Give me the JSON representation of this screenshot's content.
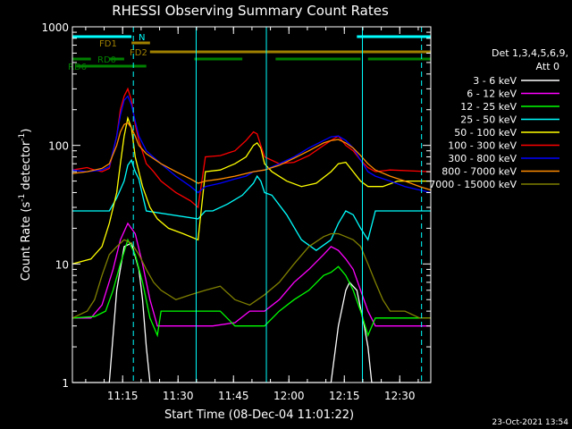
{
  "chart_data": {
    "type": "line",
    "title": "RHESSI Observing Summary Count Rates",
    "xlabel": "Start Time (08-Dec-04 11:01:22)",
    "ylabel_main": "Count Rate (s",
    "ylabel_exp1": "-1",
    "ylabel_mid": " detector",
    "ylabel_exp2": "-1",
    "ylabel_end": ")",
    "yscale": "log",
    "ylim": [
      1,
      1000
    ],
    "xlim_minutes": [
      0,
      97
    ],
    "x_ticks": [
      {
        "minute": 13.6,
        "label": "11:15"
      },
      {
        "minute": 28.6,
        "label": "11:30"
      },
      {
        "minute": 43.6,
        "label": "11:45"
      },
      {
        "minute": 58.6,
        "label": "12:00"
      },
      {
        "minute": 73.6,
        "label": "12:15"
      },
      {
        "minute": 88.6,
        "label": "12:30"
      }
    ],
    "y_ticks": [
      {
        "value": 1,
        "label": "1"
      },
      {
        "value": 10,
        "label": "10"
      },
      {
        "value": 100,
        "label": "100"
      },
      {
        "value": 1000,
        "label": "1000"
      }
    ],
    "legend_title": [
      "Det 1,3,4,5,6,9,",
      "Att 0"
    ],
    "series": [
      {
        "name": "3 - 6 keV",
        "color": "#ffffff",
        "points": [
          [
            0,
            1
          ],
          [
            10,
            1
          ],
          [
            12,
            6
          ],
          [
            14,
            14
          ],
          [
            16,
            15
          ],
          [
            18,
            9
          ],
          [
            19,
            5
          ],
          [
            20,
            2
          ],
          [
            21,
            1
          ],
          [
            70,
            1
          ],
          [
            72,
            3
          ],
          [
            74,
            6
          ],
          [
            75,
            7
          ],
          [
            77,
            6
          ],
          [
            79,
            3
          ],
          [
            80,
            2
          ],
          [
            81,
            1
          ],
          [
            97,
            1
          ]
        ]
      },
      {
        "name": "6 - 12 keV",
        "color": "#ff00ff",
        "points": [
          [
            0,
            3.5
          ],
          [
            5,
            3.5
          ],
          [
            8,
            4.5
          ],
          [
            11,
            9
          ],
          [
            13,
            16
          ],
          [
            15,
            22
          ],
          [
            17,
            18
          ],
          [
            19,
            10
          ],
          [
            21,
            5
          ],
          [
            23,
            3
          ],
          [
            33,
            3
          ],
          [
            38,
            3
          ],
          [
            44,
            3.2
          ],
          [
            48,
            4
          ],
          [
            52,
            4
          ],
          [
            56,
            5
          ],
          [
            60,
            7
          ],
          [
            64,
            9
          ],
          [
            68,
            12
          ],
          [
            70,
            14
          ],
          [
            72,
            13
          ],
          [
            74,
            11
          ],
          [
            76,
            9
          ],
          [
            78,
            6
          ],
          [
            80,
            4
          ],
          [
            82,
            3
          ],
          [
            97,
            3
          ]
        ]
      },
      {
        "name": "12 - 25 keV",
        "color": "#00ff00",
        "points": [
          [
            0,
            3.5
          ],
          [
            6,
            3.6
          ],
          [
            9,
            4
          ],
          [
            11,
            6
          ],
          [
            13,
            10
          ],
          [
            15,
            16
          ],
          [
            17,
            12
          ],
          [
            19,
            7
          ],
          [
            21,
            3.5
          ],
          [
            23,
            2.5
          ],
          [
            24,
            4
          ],
          [
            28,
            4
          ],
          [
            32,
            4
          ],
          [
            36,
            4
          ],
          [
            40,
            4
          ],
          [
            44,
            3
          ],
          [
            48,
            3
          ],
          [
            52,
            3
          ],
          [
            56,
            4
          ],
          [
            60,
            5
          ],
          [
            64,
            6
          ],
          [
            68,
            8
          ],
          [
            70,
            8.5
          ],
          [
            72,
            9.5
          ],
          [
            74,
            8
          ],
          [
            76,
            6
          ],
          [
            78,
            4
          ],
          [
            80,
            2.5
          ],
          [
            82,
            3.5
          ],
          [
            97,
            3.5
          ]
        ]
      },
      {
        "name": "25 - 50 keV",
        "color": "#00ffff",
        "points": [
          [
            0,
            28
          ],
          [
            10,
            28
          ],
          [
            12,
            36
          ],
          [
            14,
            50
          ],
          [
            15,
            68
          ],
          [
            16,
            75
          ],
          [
            17,
            60
          ],
          [
            18,
            52
          ],
          [
            19,
            38
          ],
          [
            20,
            28
          ],
          [
            34,
            24
          ],
          [
            36,
            28
          ],
          [
            38,
            28
          ],
          [
            42,
            32
          ],
          [
            46,
            38
          ],
          [
            49,
            48
          ],
          [
            50,
            55
          ],
          [
            51,
            50
          ],
          [
            52,
            40
          ],
          [
            54,
            38
          ],
          [
            58,
            26
          ],
          [
            62,
            16
          ],
          [
            66,
            13
          ],
          [
            70,
            16
          ],
          [
            72,
            22
          ],
          [
            74,
            28
          ],
          [
            76,
            26
          ],
          [
            78,
            20
          ],
          [
            80,
            16
          ],
          [
            82,
            28
          ],
          [
            97,
            28
          ]
        ]
      },
      {
        "name": "50 - 100 keV",
        "color": "#ffff00",
        "points": [
          [
            0,
            10
          ],
          [
            5,
            11
          ],
          [
            8,
            14
          ],
          [
            10,
            22
          ],
          [
            12,
            40
          ],
          [
            13,
            70
          ],
          [
            14,
            120
          ],
          [
            15,
            170
          ],
          [
            16,
            140
          ],
          [
            17,
            80
          ],
          [
            19,
            45
          ],
          [
            21,
            30
          ],
          [
            23,
            24
          ],
          [
            26,
            20
          ],
          [
            30,
            18
          ],
          [
            34,
            16
          ],
          [
            36,
            60
          ],
          [
            40,
            62
          ],
          [
            44,
            70
          ],
          [
            47,
            80
          ],
          [
            49,
            100
          ],
          [
            50,
            105
          ],
          [
            51,
            95
          ],
          [
            52,
            70
          ],
          [
            54,
            60
          ],
          [
            58,
            50
          ],
          [
            62,
            45
          ],
          [
            66,
            48
          ],
          [
            70,
            60
          ],
          [
            72,
            70
          ],
          [
            74,
            72
          ],
          [
            76,
            60
          ],
          [
            78,
            50
          ],
          [
            80,
            45
          ],
          [
            84,
            45
          ],
          [
            88,
            50
          ],
          [
            97,
            50
          ]
        ]
      },
      {
        "name": "100 - 300 keV",
        "color": "#ff0000",
        "points": [
          [
            0,
            62
          ],
          [
            4,
            65
          ],
          [
            6,
            62
          ],
          [
            8,
            60
          ],
          [
            10,
            64
          ],
          [
            12,
            120
          ],
          [
            13,
            200
          ],
          [
            14,
            260
          ],
          [
            15,
            300
          ],
          [
            16,
            240
          ],
          [
            17,
            150
          ],
          [
            18,
            110
          ],
          [
            20,
            70
          ],
          [
            22,
            60
          ],
          [
            24,
            50
          ],
          [
            28,
            40
          ],
          [
            32,
            34
          ],
          [
            34,
            30
          ],
          [
            36,
            80
          ],
          [
            40,
            82
          ],
          [
            44,
            90
          ],
          [
            47,
            110
          ],
          [
            49,
            130
          ],
          [
            50,
            125
          ],
          [
            51,
            100
          ],
          [
            52,
            80
          ],
          [
            56,
            70
          ],
          [
            60,
            72
          ],
          [
            64,
            82
          ],
          [
            68,
            100
          ],
          [
            70,
            110
          ],
          [
            72,
            120
          ],
          [
            74,
            100
          ],
          [
            76,
            90
          ],
          [
            78,
            75
          ],
          [
            80,
            65
          ],
          [
            82,
            60
          ],
          [
            86,
            62
          ],
          [
            97,
            60
          ]
        ]
      },
      {
        "name": "300 - 800 keV",
        "color": "#0000ff",
        "points": [
          [
            0,
            62
          ],
          [
            4,
            60
          ],
          [
            8,
            62
          ],
          [
            10,
            66
          ],
          [
            12,
            120
          ],
          [
            13,
            180
          ],
          [
            14,
            240
          ],
          [
            15,
            260
          ],
          [
            16,
            220
          ],
          [
            17,
            160
          ],
          [
            18,
            120
          ],
          [
            20,
            90
          ],
          [
            24,
            70
          ],
          [
            28,
            55
          ],
          [
            32,
            45
          ],
          [
            34,
            40
          ],
          [
            36,
            45
          ],
          [
            40,
            48
          ],
          [
            44,
            52
          ],
          [
            47,
            55
          ],
          [
            49,
            60
          ],
          [
            52,
            62
          ],
          [
            56,
            70
          ],
          [
            60,
            80
          ],
          [
            64,
            95
          ],
          [
            68,
            110
          ],
          [
            70,
            118
          ],
          [
            72,
            120
          ],
          [
            74,
            110
          ],
          [
            76,
            95
          ],
          [
            78,
            75
          ],
          [
            80,
            60
          ],
          [
            82,
            55
          ],
          [
            86,
            50
          ],
          [
            90,
            45
          ],
          [
            94,
            42
          ],
          [
            97,
            40
          ]
        ]
      },
      {
        "name": "800 - 7000 keV",
        "color": "#ff8c00",
        "points": [
          [
            0,
            58
          ],
          [
            4,
            60
          ],
          [
            8,
            64
          ],
          [
            10,
            70
          ],
          [
            12,
            100
          ],
          [
            13,
            130
          ],
          [
            14,
            150
          ],
          [
            15,
            155
          ],
          [
            16,
            140
          ],
          [
            17,
            120
          ],
          [
            18,
            100
          ],
          [
            20,
            85
          ],
          [
            24,
            70
          ],
          [
            28,
            60
          ],
          [
            32,
            52
          ],
          [
            34,
            48
          ],
          [
            36,
            50
          ],
          [
            40,
            52
          ],
          [
            44,
            55
          ],
          [
            47,
            58
          ],
          [
            49,
            60
          ],
          [
            52,
            62
          ],
          [
            56,
            68
          ],
          [
            60,
            78
          ],
          [
            64,
            90
          ],
          [
            68,
            105
          ],
          [
            70,
            110
          ],
          [
            72,
            112
          ],
          [
            74,
            105
          ],
          [
            76,
            95
          ],
          [
            78,
            82
          ],
          [
            80,
            70
          ],
          [
            82,
            62
          ],
          [
            86,
            55
          ],
          [
            90,
            50
          ],
          [
            94,
            45
          ],
          [
            97,
            42
          ]
        ]
      },
      {
        "name": "7000 - 15000 keV",
        "color": "#808000",
        "points": [
          [
            0,
            3.5
          ],
          [
            4,
            4
          ],
          [
            6,
            5
          ],
          [
            8,
            8
          ],
          [
            10,
            12
          ],
          [
            12,
            14
          ],
          [
            14,
            16
          ],
          [
            16,
            15
          ],
          [
            18,
            12
          ],
          [
            20,
            9
          ],
          [
            22,
            7
          ],
          [
            24,
            6
          ],
          [
            28,
            5
          ],
          [
            32,
            5.5
          ],
          [
            36,
            6
          ],
          [
            40,
            6.5
          ],
          [
            44,
            5
          ],
          [
            48,
            4.5
          ],
          [
            52,
            5.5
          ],
          [
            56,
            7
          ],
          [
            60,
            10
          ],
          [
            64,
            14
          ],
          [
            68,
            17
          ],
          [
            70,
            18
          ],
          [
            72,
            18
          ],
          [
            74,
            17
          ],
          [
            76,
            16
          ],
          [
            78,
            14
          ],
          [
            80,
            10
          ],
          [
            82,
            7
          ],
          [
            84,
            5
          ],
          [
            86,
            4
          ],
          [
            90,
            4
          ],
          [
            94,
            3.5
          ],
          [
            97,
            3.5
          ]
        ]
      }
    ],
    "flag_bars": [
      {
        "name": "N",
        "color": "#00ffff",
        "ranges": [
          [
            0,
            16
          ],
          [
            77,
            97
          ]
        ]
      },
      {
        "name": "FD1",
        "color": "#a08000",
        "ranges": [
          [
            16,
            21
          ]
        ]
      },
      {
        "name": "FD2",
        "color": "#a08000",
        "ranges": [
          [
            21,
            97
          ]
        ]
      },
      {
        "name": "RD0",
        "color": "#008000",
        "ranges": [
          [
            0,
            5
          ],
          [
            10,
            14
          ],
          [
            33,
            46
          ],
          [
            55,
            78
          ],
          [
            80,
            97
          ]
        ]
      },
      {
        "name": "RD6",
        "color": "#008000",
        "ranges": [
          [
            1,
            20
          ]
        ]
      }
    ],
    "vlines_solid_min": [
      0,
      33.5,
      52.5,
      78.5
    ],
    "vlines_dashed_min": [
      16.5,
      94.5
    ],
    "vline_color": "#00ffff"
  },
  "footer": {
    "timestamp": "23-Oct-2021 13:54"
  }
}
